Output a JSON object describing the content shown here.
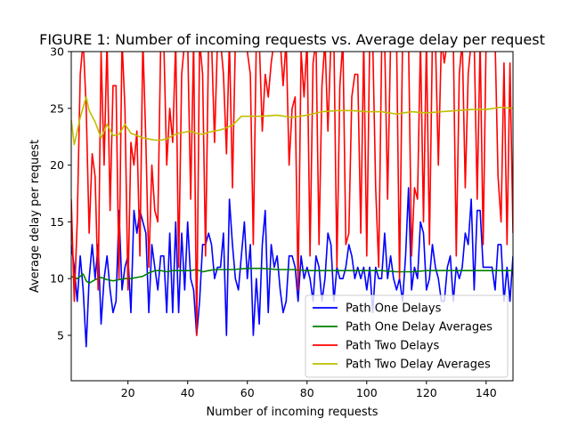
{
  "chart_data": {
    "type": "line",
    "title": "FIGURE 1: Number of incoming requests vs. Average delay per request",
    "xlabel": "Number of incoming requests",
    "ylabel": "Average delay per request",
    "xlim": [
      1,
      149
    ],
    "ylim": [
      1,
      30
    ],
    "xticks": [
      20,
      40,
      60,
      80,
      100,
      120,
      140
    ],
    "yticks": [
      5,
      10,
      15,
      20,
      25,
      30
    ],
    "grid": false,
    "legend_position": "bottom-right",
    "series": [
      {
        "name": "Path One Delays",
        "color": "#0000ff",
        "x": [
          1,
          2,
          3,
          4,
          5,
          6,
          7,
          8,
          9,
          10,
          11,
          12,
          13,
          14,
          15,
          16,
          17,
          18,
          19,
          20,
          21,
          22,
          23,
          24,
          25,
          26,
          27,
          28,
          29,
          30,
          31,
          32,
          33,
          34,
          35,
          36,
          37,
          38,
          39,
          40,
          41,
          42,
          43,
          44,
          45,
          46,
          47,
          48,
          49,
          50,
          51,
          52,
          53,
          54,
          55,
          56,
          57,
          58,
          59,
          60,
          61,
          62,
          63,
          64,
          65,
          66,
          67,
          68,
          69,
          70,
          71,
          72,
          73,
          74,
          75,
          76,
          77,
          78,
          79,
          80,
          81,
          82,
          83,
          84,
          85,
          86,
          87,
          88,
          89,
          90,
          91,
          92,
          93,
          94,
          95,
          96,
          97,
          98,
          99,
          100,
          101,
          102,
          103,
          104,
          105,
          106,
          107,
          108,
          109,
          110,
          111,
          112,
          113,
          114,
          115,
          116,
          117,
          118,
          119,
          120,
          121,
          122,
          123,
          124,
          125,
          126,
          127,
          128,
          129,
          130,
          131,
          132,
          133,
          134,
          135,
          136,
          137,
          138,
          139,
          140,
          141,
          142,
          143,
          144,
          145,
          146,
          147,
          148,
          149
        ],
        "y": [
          13,
          11,
          8,
          12,
          9,
          4,
          10,
          13,
          10,
          13,
          6,
          10,
          12,
          9,
          7,
          8,
          16,
          9,
          11,
          12,
          7,
          16,
          14,
          16,
          15,
          14,
          7,
          13,
          11,
          9,
          12,
          12,
          7,
          14,
          7,
          15,
          7,
          14,
          9,
          15,
          10,
          9,
          5,
          8,
          13,
          13,
          14,
          13,
          10,
          11,
          11,
          14,
          5,
          17,
          13,
          10,
          9,
          12,
          15,
          10,
          13,
          5,
          10,
          6,
          13,
          16,
          7,
          13,
          11,
          12,
          9,
          7,
          8,
          12,
          12,
          11,
          8,
          12,
          10,
          11,
          10,
          8,
          12,
          11,
          8,
          10,
          14,
          13,
          8,
          11,
          10,
          10,
          11,
          13,
          12,
          10,
          11,
          10,
          11,
          9,
          11,
          7,
          11,
          10,
          10,
          14,
          10,
          12,
          10,
          9,
          10,
          8,
          12,
          18,
          9,
          11,
          10,
          15,
          14,
          9,
          10,
          13,
          11,
          10,
          8,
          8,
          11,
          12,
          8,
          11,
          10,
          11,
          14,
          13,
          17,
          9,
          16,
          16,
          11,
          11,
          11,
          11,
          9,
          13,
          13,
          8,
          11,
          8,
          12
        ],
        "x_note": "",
        "y_note": ""
      },
      {
        "name": "Path One Delay Averages",
        "color": "#008000",
        "x": [
          1,
          3,
          5,
          6,
          7,
          9,
          11,
          13,
          15,
          17,
          19,
          21,
          23,
          25,
          27,
          29,
          31,
          33,
          35,
          37,
          39,
          41,
          43,
          45,
          47,
          49,
          51,
          55,
          60,
          65,
          70,
          75,
          80,
          85,
          90,
          95,
          100,
          105,
          110,
          115,
          120,
          125,
          130,
          135,
          140,
          145,
          149
        ],
        "y": [
          10.2,
          10.0,
          10.4,
          9.8,
          9.6,
          9.9,
          10.1,
          9.9,
          9.8,
          9.9,
          10.0,
          10.0,
          10.1,
          10.2,
          10.5,
          10.7,
          10.7,
          10.6,
          10.7,
          10.7,
          10.7,
          10.7,
          10.8,
          10.6,
          10.7,
          10.8,
          10.8,
          10.8,
          10.9,
          10.9,
          10.8,
          10.8,
          10.7,
          10.7,
          10.7,
          10.7,
          10.7,
          10.7,
          10.6,
          10.6,
          10.7,
          10.7,
          10.7,
          10.7,
          10.7,
          10.7,
          10.7
        ]
      },
      {
        "name": "Path Two Delays",
        "color": "#ff0000",
        "x": [
          1,
          2,
          3,
          4,
          5,
          6,
          7,
          8,
          9,
          10,
          11,
          12,
          13,
          14,
          15,
          16,
          17,
          18,
          19,
          20,
          21,
          22,
          23,
          24,
          25,
          26,
          27,
          28,
          29,
          30,
          31,
          32,
          33,
          34,
          35,
          36,
          37,
          38,
          39,
          40,
          41,
          42,
          43,
          44,
          45,
          46,
          47,
          48,
          49,
          50,
          51,
          52,
          53,
          54,
          55,
          56,
          57,
          58,
          59,
          60,
          61,
          62,
          63,
          64,
          65,
          66,
          67,
          68,
          69,
          70,
          71,
          72,
          73,
          74,
          75,
          76,
          77,
          78,
          79,
          80,
          81,
          82,
          83,
          84,
          85,
          86,
          87,
          88,
          89,
          90,
          91,
          92,
          93,
          94,
          95,
          96,
          97,
          98,
          99,
          100,
          101,
          102,
          103,
          104,
          105,
          106,
          107,
          108,
          109,
          110,
          111,
          112,
          113,
          114,
          115,
          116,
          117,
          118,
          119,
          120,
          121,
          122,
          123,
          124,
          125,
          126,
          127,
          128,
          129,
          130,
          131,
          132,
          133,
          134,
          135,
          136,
          137,
          138,
          139,
          140,
          141,
          142,
          143,
          144,
          145,
          146,
          147,
          148,
          149
        ],
        "y": [
          17,
          8,
          15,
          28,
          31,
          25,
          14,
          21,
          19,
          9,
          30,
          20,
          31,
          16,
          27,
          27,
          10,
          31,
          25,
          9,
          22,
          20,
          23,
          12,
          31,
          22,
          11,
          20,
          16,
          15,
          31,
          31,
          20,
          25,
          22,
          31,
          11,
          28,
          31,
          31,
          17,
          31,
          5,
          31,
          28,
          12,
          31,
          31,
          22,
          31,
          31,
          28,
          21,
          31,
          18,
          31,
          31,
          31,
          31,
          30,
          28,
          13,
          31,
          31,
          23,
          28,
          26,
          29,
          31,
          31,
          31,
          27,
          31,
          20,
          25,
          26,
          9,
          30,
          26,
          31,
          12,
          29,
          31,
          13,
          27,
          31,
          23,
          31,
          31,
          11,
          27,
          31,
          13,
          14,
          26,
          28,
          28,
          14,
          31,
          12,
          31,
          31,
          18,
          11,
          30,
          31,
          17,
          31,
          31,
          31,
          10,
          31,
          31,
          31,
          12,
          18,
          17,
          31,
          15,
          31,
          13,
          31,
          31,
          20,
          31,
          29,
          31,
          31,
          31,
          12,
          28,
          31,
          18,
          28,
          31,
          31,
          17,
          31,
          13,
          31,
          31,
          31,
          31,
          19,
          15,
          29,
          13,
          29,
          14
        ],
        "y_clip_note": ""
      },
      {
        "name": "Path Two Delay Averages",
        "color": "#bfbf00",
        "x": [
          1,
          2,
          4,
          6,
          7,
          9,
          11,
          13,
          15,
          17,
          19,
          21,
          23,
          25,
          27,
          29,
          31,
          33,
          35,
          37,
          39,
          41,
          43,
          45,
          47,
          49,
          51,
          55,
          58,
          60,
          65,
          70,
          75,
          80,
          85,
          90,
          95,
          100,
          105,
          110,
          115,
          120,
          125,
          130,
          135,
          140,
          145,
          149
        ],
        "y": [
          24.0,
          21.8,
          24.2,
          26.0,
          24.8,
          23.8,
          22.4,
          23.6,
          22.6,
          22.7,
          23.6,
          22.8,
          22.6,
          22.4,
          22.3,
          22.2,
          22.2,
          22.3,
          22.6,
          22.8,
          22.9,
          23.0,
          22.8,
          22.7,
          22.9,
          23.0,
          23.1,
          23.5,
          24.3,
          24.3,
          24.3,
          24.4,
          24.2,
          24.4,
          24.7,
          24.8,
          24.8,
          24.7,
          24.7,
          24.5,
          24.7,
          24.6,
          24.7,
          24.8,
          24.9,
          24.9,
          25.1,
          25.0
        ]
      }
    ]
  }
}
